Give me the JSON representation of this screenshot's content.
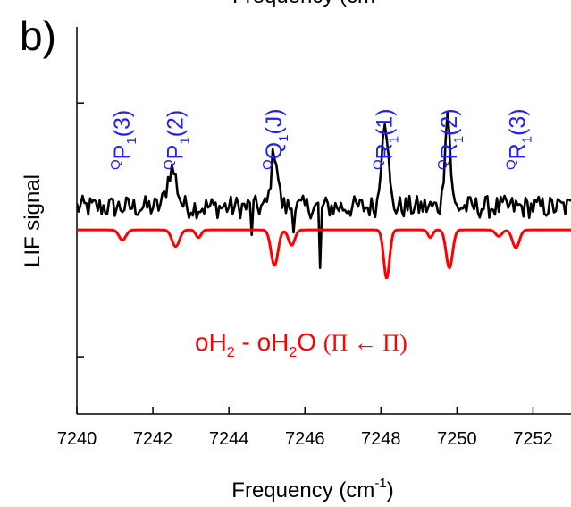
{
  "chart_data": {
    "type": "line",
    "panel_label": "b)",
    "top_clipped_label": "Frequency (cm",
    "xlabel": "Frequency (cm",
    "xlabel_sup": "-1",
    "xlabel_end": ")",
    "ylabel": "LIF signal",
    "xlim": [
      7240,
      7253
    ],
    "ylim": [
      -1.45,
      1.6
    ],
    "x_ticks": [
      7240,
      7242,
      7244,
      7246,
      7248,
      7250,
      7252
    ],
    "y_ticks": [
      -1,
      0,
      1
    ],
    "grid": false,
    "colors": {
      "experiment": "#000000",
      "simulation": "#ff0000",
      "labels": "#2020ff"
    },
    "series": [
      {
        "role": "experiment",
        "baseline": 0.18,
        "noise_amplitude": 0.09,
        "peaks": [
          {
            "x": 7242.5,
            "height": 0.3,
            "width": 0.18
          },
          {
            "x": 7245.2,
            "height": 0.45,
            "width": 0.12
          },
          {
            "x": 7248.1,
            "height": 0.72,
            "width": 0.12
          },
          {
            "x": 7249.75,
            "height": 0.75,
            "width": 0.1
          }
        ],
        "dips": [
          {
            "x": 7246.4,
            "depth": 0.48
          },
          {
            "x": 7244.6,
            "depth": 0.22
          },
          {
            "x": 7245.7,
            "depth": 0.2
          }
        ]
      },
      {
        "role": "simulation",
        "baseline": 0.0,
        "dips": [
          {
            "x": 7241.2,
            "depth": 0.08,
            "width": 0.13
          },
          {
            "x": 7242.6,
            "depth": 0.13,
            "width": 0.14
          },
          {
            "x": 7243.2,
            "depth": 0.06,
            "width": 0.1
          },
          {
            "x": 7245.2,
            "depth": 0.28,
            "width": 0.13
          },
          {
            "x": 7245.65,
            "depth": 0.12,
            "width": 0.12
          },
          {
            "x": 7248.15,
            "depth": 0.38,
            "width": 0.11
          },
          {
            "x": 7249.8,
            "depth": 0.3,
            "width": 0.12
          },
          {
            "x": 7249.3,
            "depth": 0.06,
            "width": 0.09
          },
          {
            "x": 7251.1,
            "depth": 0.05,
            "width": 0.12
          },
          {
            "x": 7251.55,
            "depth": 0.14,
            "width": 0.13
          }
        ]
      }
    ],
    "peak_labels": [
      {
        "x": 7241.2,
        "sup": "Q",
        "main": "P",
        "sub": "1",
        "tail": "(3)"
      },
      {
        "x": 7242.6,
        "sup": "Q",
        "main": "P",
        "sub": "1",
        "tail": "(2)"
      },
      {
        "x": 7245.2,
        "sup": "Q",
        "main": "Q",
        "sub": "1",
        "tail": "(J)"
      },
      {
        "x": 7248.1,
        "sup": "Q",
        "main": "R",
        "sub": "1",
        "tail": "(1)"
      },
      {
        "x": 7249.8,
        "sup": "Q",
        "main": "R",
        "sub": "1",
        "tail": "(2)"
      },
      {
        "x": 7251.6,
        "sup": "Q",
        "main": "R",
        "sub": "1",
        "tail": "(3)"
      }
    ],
    "annotation": {
      "part1": "oH",
      "sub1": "2",
      "part2": " - oH",
      "sub2": "2",
      "part3": "O ",
      "greek": "(Π ← Π)"
    }
  }
}
